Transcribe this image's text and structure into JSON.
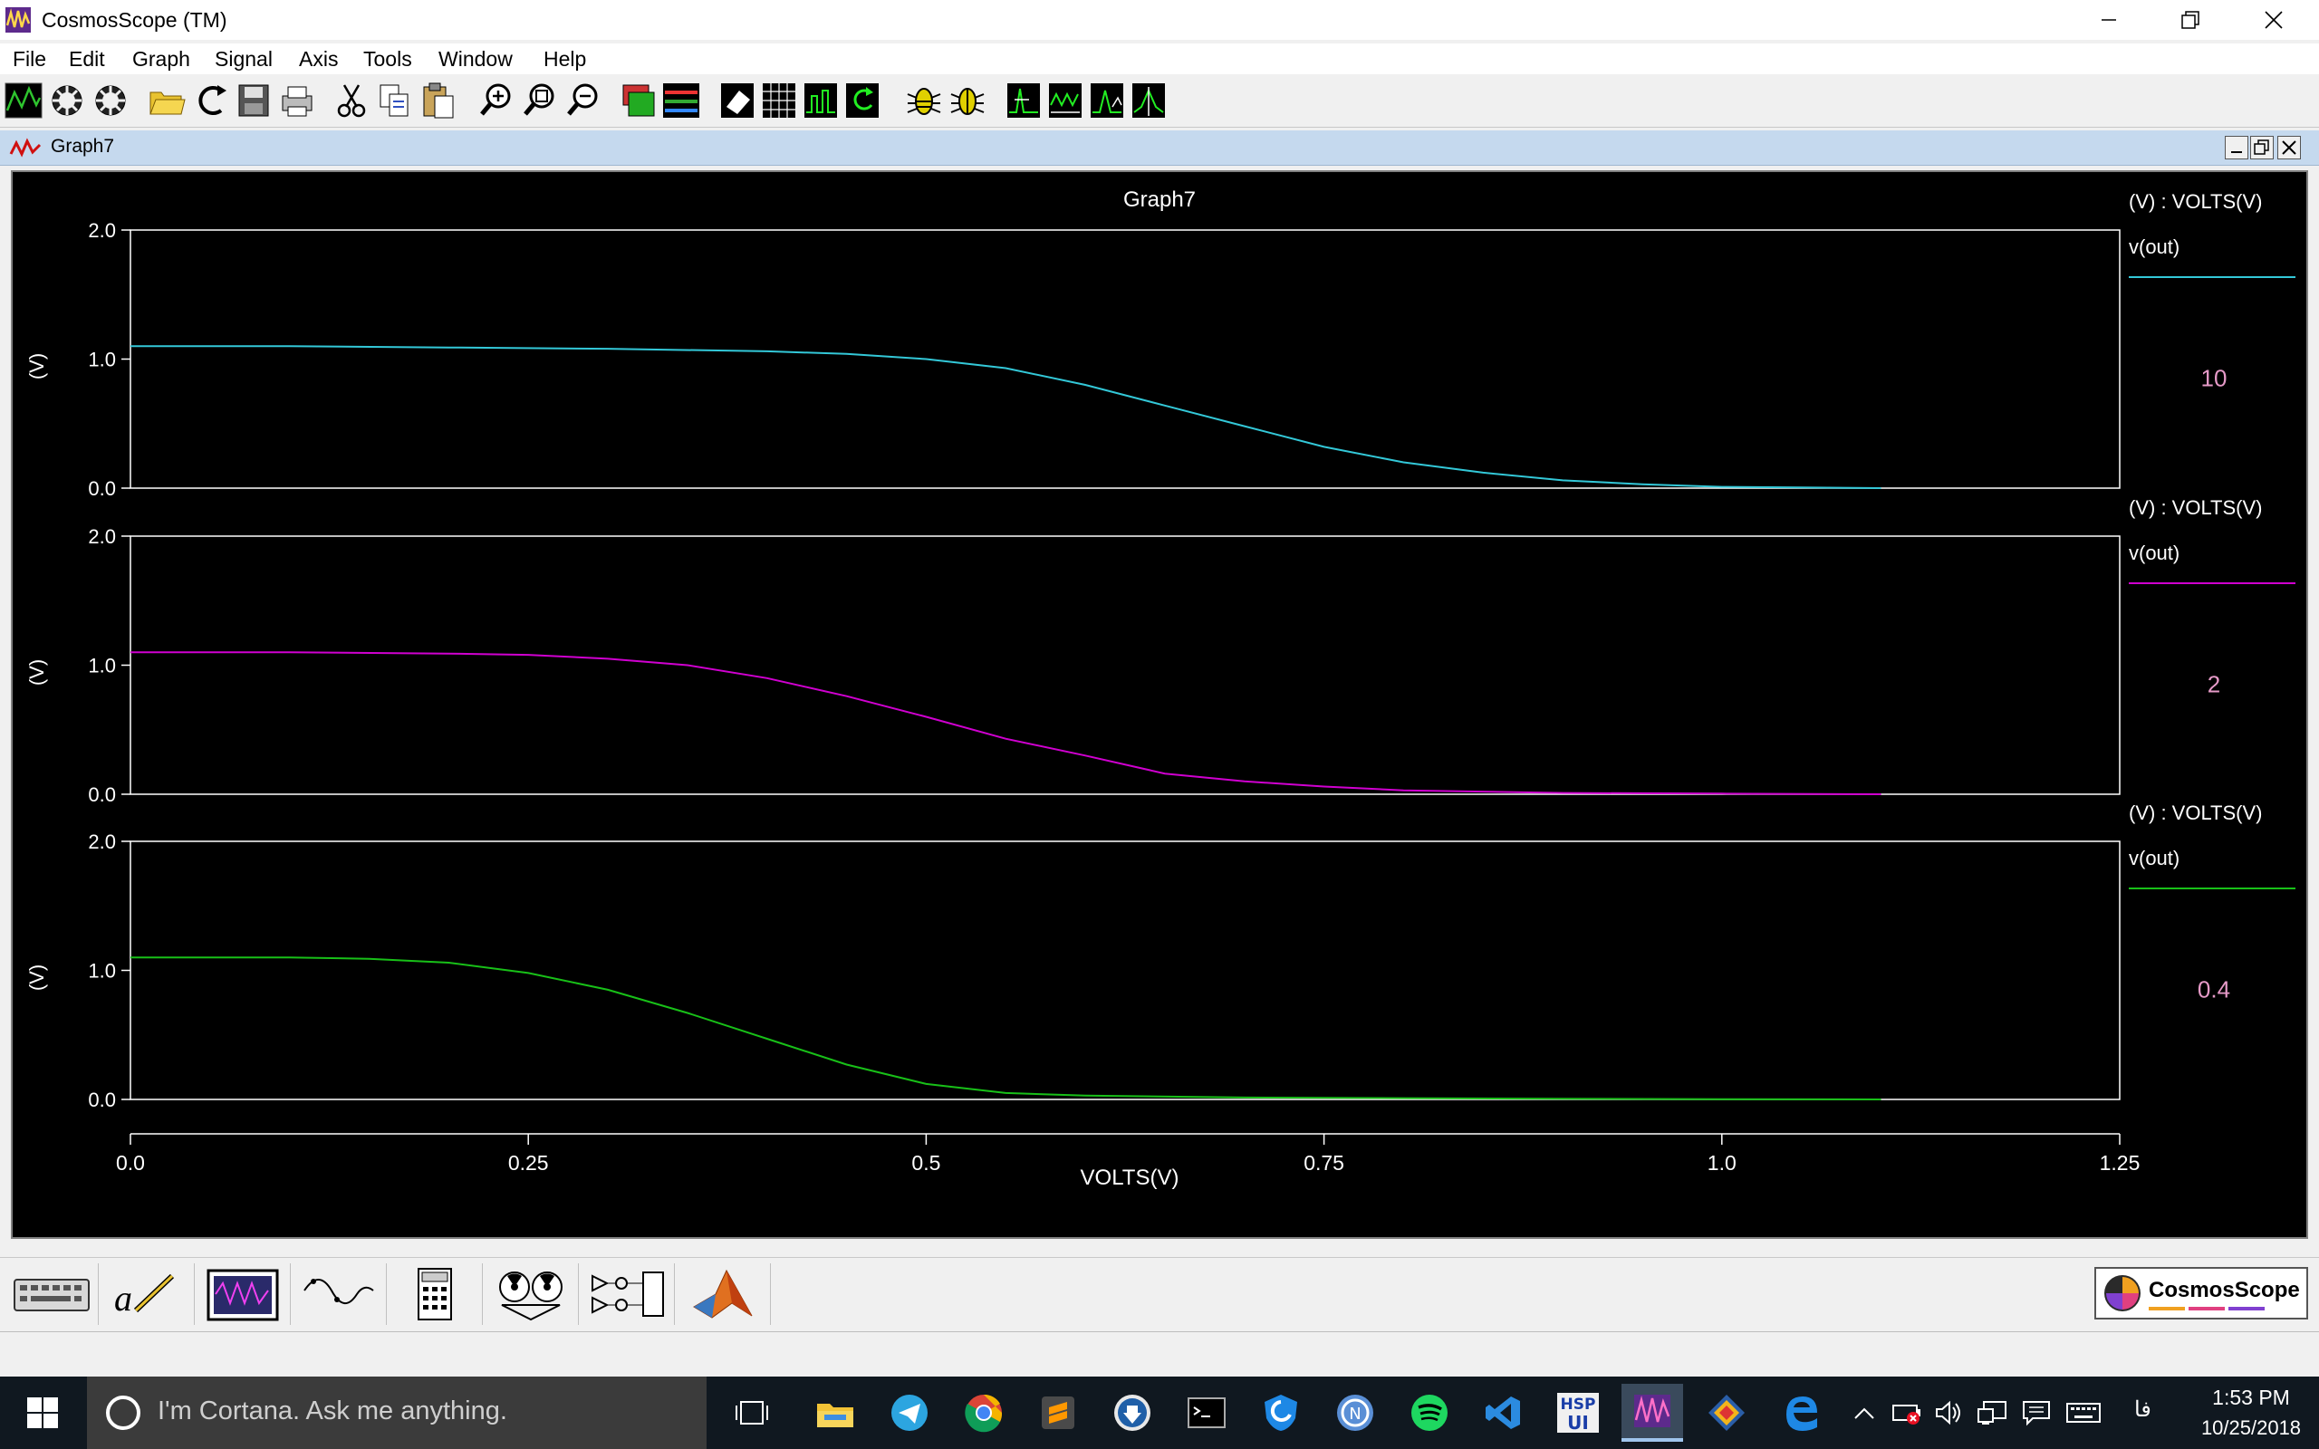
{
  "window": {
    "title": "CosmosScope (TM)"
  },
  "menu": [
    "File",
    "Edit",
    "Graph",
    "Signal",
    "Axis",
    "Tools",
    "Window",
    "Help"
  ],
  "graph_window": {
    "title": "Graph7"
  },
  "colors": {
    "cyan": "#33c8d8",
    "magenta": "#d000d0",
    "green": "#18c018",
    "legend_value": "#e69ac8"
  },
  "chart_data": [
    {
      "type": "line",
      "title": "Graph7",
      "ylabel": "(V)",
      "ylim": [
        0,
        2.0
      ],
      "yticks": [
        "2.0",
        "1.0",
        "0.0"
      ],
      "legend_header": "(V) : VOLTS(V)",
      "series": [
        {
          "name": "v(out)",
          "param": "10",
          "color": "#33c8d8",
          "x": [
            0,
            0.1,
            0.2,
            0.3,
            0.4,
            0.45,
            0.5,
            0.55,
            0.6,
            0.65,
            0.7,
            0.75,
            0.8,
            0.85,
            0.9,
            0.95,
            1.0,
            1.05,
            1.1
          ],
          "y": [
            1.1,
            1.1,
            1.09,
            1.08,
            1.06,
            1.04,
            1.0,
            0.93,
            0.8,
            0.64,
            0.48,
            0.32,
            0.2,
            0.12,
            0.06,
            0.03,
            0.01,
            0.005,
            0
          ]
        }
      ]
    },
    {
      "type": "line",
      "ylabel": "(V)",
      "ylim": [
        0,
        2.0
      ],
      "yticks": [
        "2.0",
        "1.0",
        "0.0"
      ],
      "legend_header": "(V) : VOLTS(V)",
      "series": [
        {
          "name": "v(out)",
          "param": "2",
          "color": "#d000d0",
          "x": [
            0,
            0.1,
            0.2,
            0.25,
            0.3,
            0.35,
            0.4,
            0.45,
            0.5,
            0.55,
            0.6,
            0.65,
            0.7,
            0.75,
            0.8,
            0.9,
            1.0,
            1.1
          ],
          "y": [
            1.1,
            1.1,
            1.09,
            1.08,
            1.05,
            1.0,
            0.9,
            0.76,
            0.6,
            0.43,
            0.3,
            0.16,
            0.1,
            0.06,
            0.03,
            0.01,
            0.005,
            0
          ]
        }
      ]
    },
    {
      "type": "line",
      "ylabel": "(V)",
      "ylim": [
        0,
        2.0
      ],
      "yticks": [
        "2.0",
        "1.0",
        "0.0"
      ],
      "legend_header": "(V) : VOLTS(V)",
      "series": [
        {
          "name": "v(out)",
          "param": "0.4",
          "color": "#18c018",
          "x": [
            0,
            0.1,
            0.15,
            0.2,
            0.25,
            0.3,
            0.35,
            0.4,
            0.45,
            0.5,
            0.55,
            0.6,
            0.7,
            0.8,
            0.9,
            1.0,
            1.1
          ],
          "y": [
            1.1,
            1.1,
            1.09,
            1.06,
            0.98,
            0.85,
            0.67,
            0.47,
            0.27,
            0.12,
            0.05,
            0.03,
            0.015,
            0.01,
            0.005,
            0.002,
            0
          ]
        }
      ]
    }
  ],
  "x_axis": {
    "label": "VOLTS(V)",
    "xlim": [
      0,
      1.25
    ],
    "ticks": [
      {
        "value": 0,
        "label": "0.0"
      },
      {
        "value": 0.25,
        "label": "0.25"
      },
      {
        "value": 0.5,
        "label": "0.5"
      },
      {
        "value": 0.75,
        "label": "0.75"
      },
      {
        "value": 1.0,
        "label": "1.0"
      },
      {
        "value": 1.25,
        "label": "1.25"
      }
    ]
  },
  "palette": {
    "logo_text": "CosmosScope"
  },
  "taskbar": {
    "cortana_placeholder": "I'm Cortana. Ask me anything.",
    "language": "فا",
    "time": "1:53 PM",
    "date": "10/25/2018"
  }
}
